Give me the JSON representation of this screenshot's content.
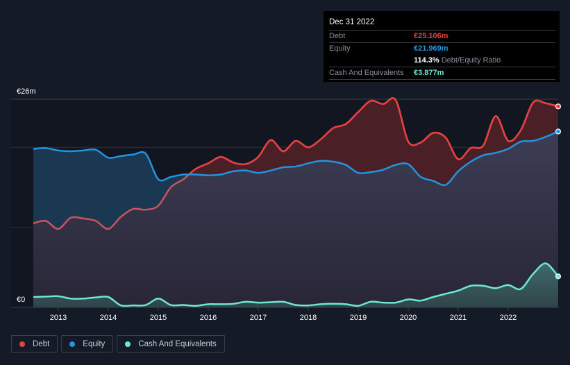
{
  "colors": {
    "debt": "#e64141",
    "equity": "#2394df",
    "cash": "#6ee7d3",
    "background": "#151b26",
    "grid": "#2c303a"
  },
  "tooltip": {
    "date": "Dec 31 2022",
    "rows": [
      {
        "label": "Debt",
        "value": "€25.106m"
      },
      {
        "label": "Equity",
        "value": "€21.969m"
      },
      {
        "label": "",
        "value": "114.3%",
        "suffix": "Debt/Equity Ratio"
      },
      {
        "label": "Cash And Equivalents",
        "value": "€3.877m"
      }
    ]
  },
  "legend": [
    {
      "label": "Debt"
    },
    {
      "label": "Equity"
    },
    {
      "label": "Cash And Equivalents"
    }
  ],
  "chart_data": {
    "type": "area",
    "title": "",
    "xlabel": "",
    "ylabel": "",
    "y_unit": "€m",
    "ylim": [
      0,
      26
    ],
    "y_tick_labels": [
      {
        "value": 26,
        "label": "€26m"
      },
      {
        "value": 0,
        "label": "€0"
      }
    ],
    "y_gridlines": [
      0,
      10,
      20,
      26
    ],
    "xlim": [
      2012.5,
      2023.0
    ],
    "x_tick_labels": [
      "2013",
      "2014",
      "2015",
      "2016",
      "2017",
      "2018",
      "2019",
      "2020",
      "2021",
      "2022"
    ],
    "x_ticks": [
      2013,
      2014,
      2015,
      2016,
      2017,
      2018,
      2019,
      2020,
      2021,
      2022
    ],
    "grid": true,
    "legend_position": "bottom-left",
    "x": [
      2012.5,
      2012.75,
      2013.0,
      2013.25,
      2013.5,
      2013.75,
      2014.0,
      2014.25,
      2014.5,
      2014.75,
      2015.0,
      2015.25,
      2015.5,
      2015.75,
      2016.0,
      2016.25,
      2016.5,
      2016.75,
      2017.0,
      2017.25,
      2017.5,
      2017.75,
      2018.0,
      2018.25,
      2018.5,
      2018.75,
      2019.0,
      2019.25,
      2019.5,
      2019.75,
      2020.0,
      2020.25,
      2020.5,
      2020.75,
      2021.0,
      2021.25,
      2021.5,
      2021.75,
      2022.0,
      2022.25,
      2022.5,
      2022.75,
      2023.0
    ],
    "series": [
      {
        "name": "Debt",
        "values": [
          10.5,
          10.8,
          9.8,
          11.2,
          11.1,
          10.8,
          9.8,
          11.3,
          12.3,
          12.2,
          12.7,
          15.0,
          16.0,
          17.3,
          18.0,
          18.8,
          18.1,
          17.9,
          18.8,
          20.9,
          19.5,
          20.8,
          20.0,
          21.0,
          22.4,
          22.9,
          24.4,
          25.8,
          25.4,
          25.9,
          20.7,
          20.6,
          21.8,
          21.2,
          18.5,
          19.9,
          20.2,
          23.9,
          20.8,
          22.1,
          25.6,
          25.5,
          25.106
        ]
      },
      {
        "name": "Equity",
        "values": [
          19.8,
          19.9,
          19.6,
          19.5,
          19.6,
          19.7,
          18.7,
          18.9,
          19.1,
          19.2,
          16.0,
          16.3,
          16.6,
          16.6,
          16.5,
          16.6,
          17.0,
          17.1,
          16.8,
          17.1,
          17.5,
          17.6,
          18.0,
          18.3,
          18.2,
          17.8,
          16.8,
          16.9,
          17.2,
          17.8,
          17.9,
          16.3,
          15.8,
          15.3,
          17.0,
          18.2,
          19.0,
          19.3,
          19.8,
          20.7,
          20.8,
          21.3,
          21.969
        ]
      },
      {
        "name": "Cash And Equivalents",
        "values": [
          1.3,
          1.35,
          1.4,
          1.1,
          1.1,
          1.25,
          1.3,
          0.25,
          0.25,
          0.3,
          1.1,
          0.3,
          0.3,
          0.2,
          0.4,
          0.4,
          0.45,
          0.7,
          0.6,
          0.65,
          0.7,
          0.3,
          0.25,
          0.4,
          0.45,
          0.4,
          0.2,
          0.7,
          0.6,
          0.6,
          1.0,
          0.85,
          1.3,
          1.7,
          2.1,
          2.7,
          2.7,
          2.4,
          2.8,
          2.3,
          4.2,
          5.5,
          3.877
        ]
      }
    ]
  }
}
